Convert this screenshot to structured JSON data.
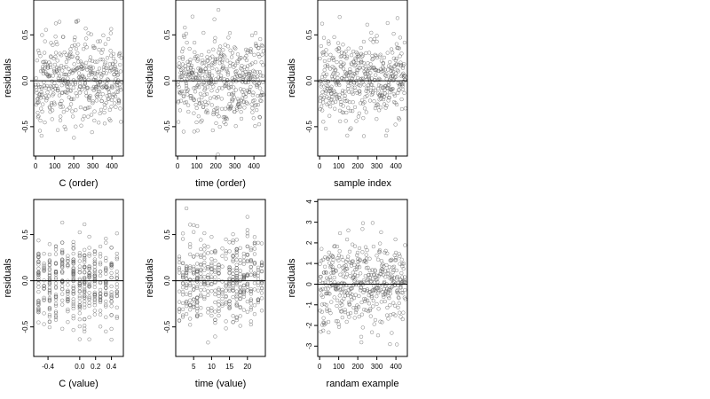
{
  "chart_data": [
    {
      "type": "scatter",
      "xlabel": "C (order)",
      "ylabel": "residuals",
      "xlim": [
        -10,
        460
      ],
      "ylim": [
        -0.82,
        0.88
      ],
      "xticks": [
        0,
        100,
        200,
        300,
        400
      ],
      "xtick_labels": [
        "0",
        "100",
        "200",
        "300",
        "400"
      ],
      "yticks": [
        -0.5,
        0.0,
        0.5
      ],
      "ytick_labels": [
        "-0.5",
        "0.0",
        "0.5"
      ],
      "hline": 0,
      "x_kind": "index",
      "n": 450,
      "y_spread": 0.24,
      "grid": false
    },
    {
      "type": "scatter",
      "xlabel": "time (order)",
      "ylabel": "residuals",
      "xlim": [
        -10,
        460
      ],
      "ylim": [
        -0.82,
        0.88
      ],
      "xticks": [
        0,
        100,
        200,
        300,
        400
      ],
      "xtick_labels": [
        "0",
        "100",
        "200",
        "300",
        "400"
      ],
      "yticks": [
        -0.5,
        0.0,
        0.5
      ],
      "ytick_labels": [
        "-0.5",
        "0.0",
        "0.5"
      ],
      "hline": 0,
      "x_kind": "index",
      "n": 450,
      "y_spread": 0.24,
      "grid": false
    },
    {
      "type": "scatter",
      "xlabel": "sample index",
      "ylabel": "residuals",
      "xlim": [
        -10,
        460
      ],
      "ylim": [
        -0.82,
        0.88
      ],
      "xticks": [
        0,
        100,
        200,
        300,
        400
      ],
      "xtick_labels": [
        "0",
        "100",
        "200",
        "300",
        "400"
      ],
      "yticks": [
        -0.5,
        0.0,
        0.5
      ],
      "ytick_labels": [
        "-0.5",
        "0.0",
        "0.5"
      ],
      "hline": 0,
      "x_kind": "index",
      "n": 450,
      "y_spread": 0.24,
      "grid": false
    },
    {
      "type": "scatter",
      "xlabel": "C (value)",
      "ylabel": "residuals",
      "xlim": [
        -0.58,
        0.55
      ],
      "ylim": [
        -0.82,
        0.88
      ],
      "xticks": [
        -0.4,
        0.0,
        0.2,
        0.4
      ],
      "xtick_labels": [
        "-0.4",
        "0.0",
        "0.2",
        "0.4"
      ],
      "yticks": [
        -0.5,
        0.0,
        0.5
      ],
      "ytick_labels": [
        "-0.5",
        "0.0",
        "0.5"
      ],
      "hline": 0,
      "x_kind": "discrete",
      "x_levels": [
        -0.52,
        -0.45,
        -0.38,
        -0.3,
        -0.22,
        -0.15,
        -0.08,
        0.0,
        0.06,
        0.12,
        0.19,
        0.26,
        0.33,
        0.4,
        0.47
      ],
      "n": 450,
      "y_spread": 0.24,
      "grid": false
    },
    {
      "type": "scatter",
      "xlabel": "time (value)",
      "ylabel": "residuals",
      "xlim": [
        0,
        25
      ],
      "ylim": [
        -0.82,
        0.88
      ],
      "xticks": [
        5,
        10,
        15,
        20
      ],
      "xtick_labels": [
        "5",
        "10",
        "15",
        "20"
      ],
      "yticks": [
        -0.5,
        0.0,
        0.5
      ],
      "ytick_labels": [
        "-0.5",
        "0.0",
        "0.5"
      ],
      "hline": 0,
      "x_kind": "discrete",
      "x_levels": [
        1,
        2,
        3,
        4,
        5,
        6,
        7,
        8,
        9,
        10,
        11,
        12,
        13,
        14,
        15,
        16,
        17,
        18,
        19,
        20,
        21,
        22,
        23,
        24
      ],
      "n": 450,
      "y_spread": 0.24,
      "grid": false
    },
    {
      "type": "scatter",
      "xlabel": "randam example",
      "ylabel": "residuals",
      "xlim": [
        -10,
        460
      ],
      "ylim": [
        -3.5,
        4.1
      ],
      "xticks": [
        0,
        100,
        200,
        300,
        400
      ],
      "xtick_labels": [
        "0",
        "100",
        "200",
        "300",
        "400"
      ],
      "yticks": [
        -3,
        -2,
        -1,
        0,
        1,
        2,
        3,
        4
      ],
      "ytick_labels": [
        "-3",
        "-2",
        "-1",
        "0",
        "1",
        "2",
        "3",
        "4"
      ],
      "hline": 0,
      "x_kind": "index",
      "n": 450,
      "y_spread": 1.0,
      "grid": false
    }
  ]
}
